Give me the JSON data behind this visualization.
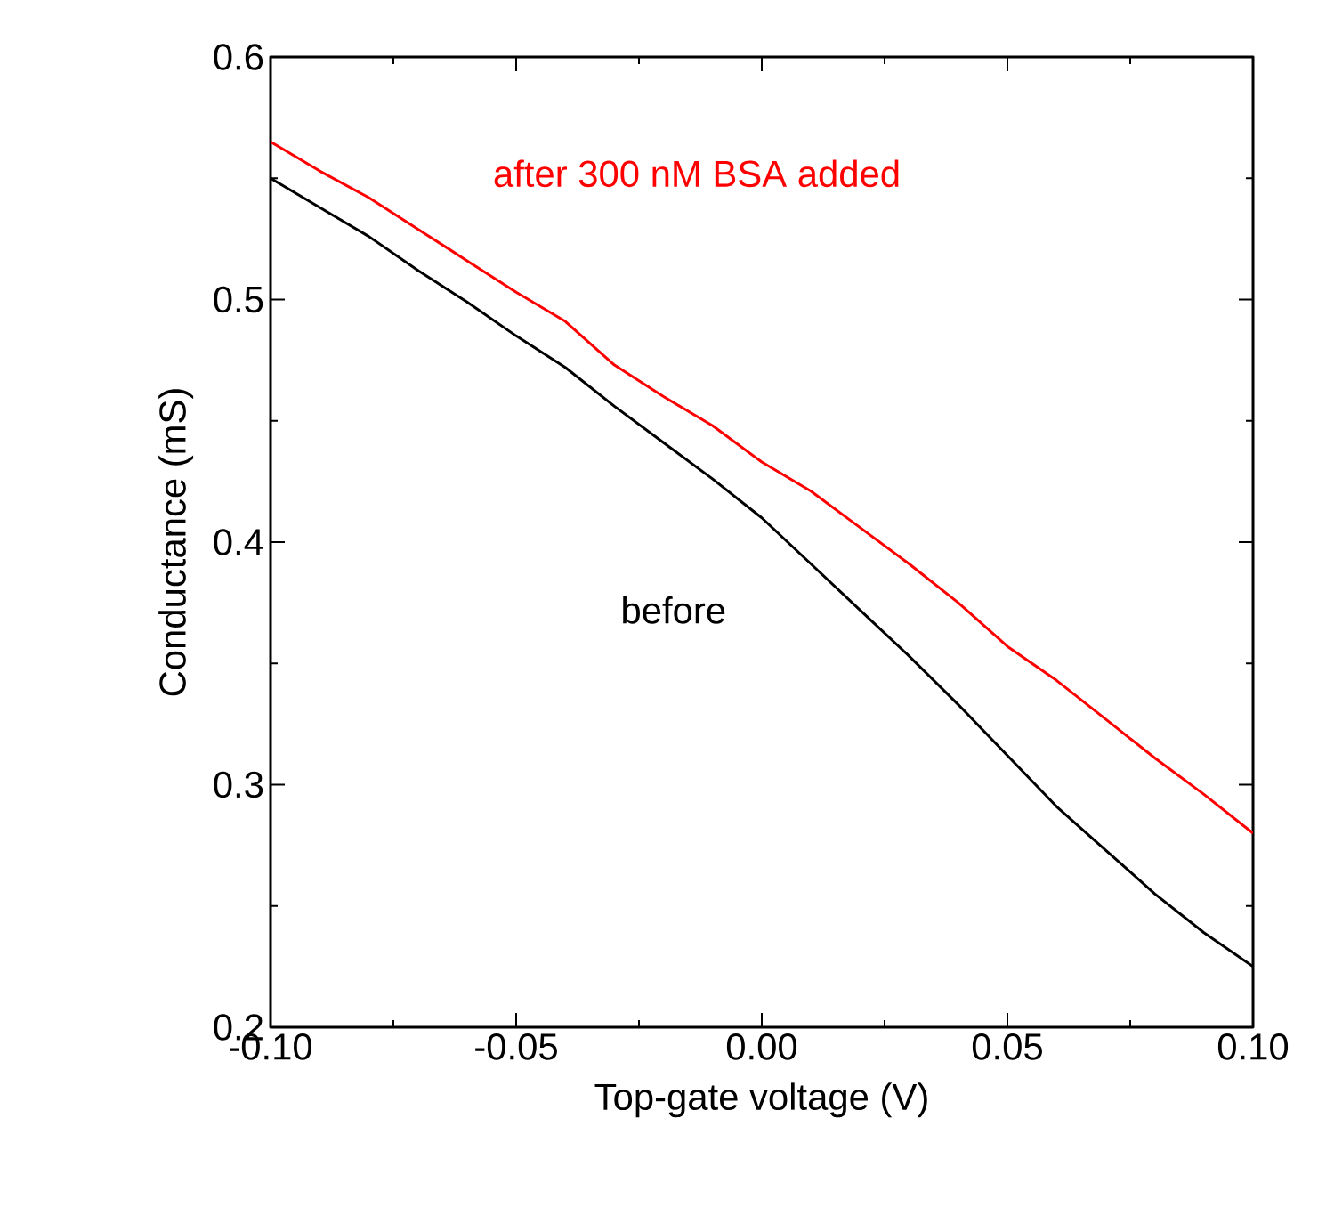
{
  "chart_data": {
    "type": "line",
    "xlabel": "Top-gate voltage (V)",
    "ylabel": "Conductance (mS)",
    "x": [
      -0.1,
      -0.09,
      -0.08,
      -0.07,
      -0.06,
      -0.05,
      -0.04,
      -0.03,
      -0.02,
      -0.01,
      0.0,
      0.01,
      0.02,
      0.03,
      0.04,
      0.05,
      0.06,
      0.07,
      0.08,
      0.09,
      0.1
    ],
    "series": [
      {
        "name": "after 300 nM BSA added",
        "color": "#ff0000",
        "values": [
          0.565,
          0.553,
          0.542,
          0.529,
          0.516,
          0.503,
          0.491,
          0.473,
          0.46,
          0.448,
          0.433,
          0.421,
          0.406,
          0.391,
          0.375,
          0.357,
          0.343,
          0.327,
          0.311,
          0.296,
          0.28
        ]
      },
      {
        "name": "before",
        "color": "#000000",
        "values": [
          0.55,
          0.538,
          0.526,
          0.512,
          0.499,
          0.485,
          0.472,
          0.456,
          0.441,
          0.426,
          0.41,
          0.391,
          0.372,
          0.353,
          0.333,
          0.312,
          0.291,
          0.273,
          0.255,
          0.239,
          0.225
        ]
      }
    ],
    "xlim": [
      -0.1,
      0.1
    ],
    "xticks": [
      {
        "value": -0.1,
        "label": "-0.10"
      },
      {
        "value": -0.05,
        "label": "-0.05"
      },
      {
        "value": 0.0,
        "label": "0.00"
      },
      {
        "value": 0.05,
        "label": "0.05"
      },
      {
        "value": 0.1,
        "label": "0.10"
      }
    ],
    "ylim": [
      0.2,
      0.6
    ],
    "yticks": [
      0.2,
      0.3,
      0.4,
      0.5,
      0.6
    ],
    "grid": false,
    "legend": false,
    "marker": "none",
    "line_style": "solid"
  }
}
